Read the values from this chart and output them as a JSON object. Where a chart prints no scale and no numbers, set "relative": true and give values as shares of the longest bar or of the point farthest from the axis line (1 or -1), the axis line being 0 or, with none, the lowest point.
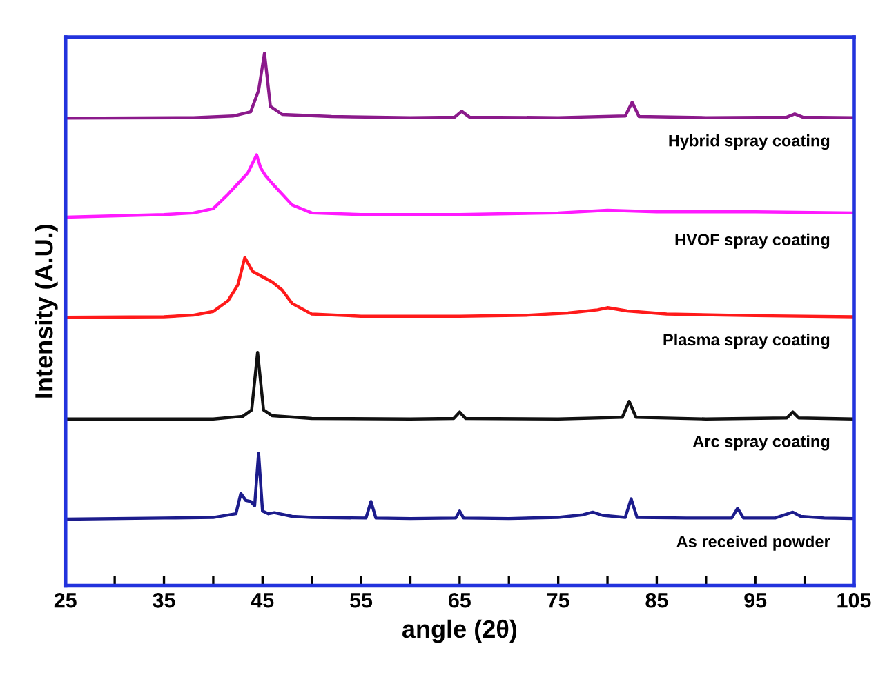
{
  "chart_data": {
    "type": "line",
    "relative": true,
    "xlabel": "angle (2θ)",
    "ylabel": "Intensity (A.U.)",
    "xlim": [
      25,
      105
    ],
    "xticks": [
      25,
      {
        "value": 30,
        "label": null
      },
      35,
      {
        "value": 40,
        "label": null
      },
      45,
      {
        "value": 50,
        "label": null
      },
      55,
      {
        "value": 60,
        "label": null
      },
      65,
      {
        "value": 70,
        "label": null
      },
      75,
      {
        "value": 80,
        "label": null
      },
      85,
      {
        "value": 90,
        "label": null
      },
      95,
      {
        "value": 100,
        "label": null
      },
      105
    ],
    "grid": false,
    "legend": false,
    "marker": "none",
    "line_style": "solid",
    "series": [
      {
        "name": "As received powder",
        "color": "#1c1c8c",
        "x": [
          25,
          35,
          40,
          42.3,
          42.8,
          43.3,
          43.8,
          44.2,
          44.6,
          45.0,
          45.6,
          46.2,
          48,
          50,
          55.5,
          56.0,
          56.5,
          60,
          64.6,
          65.0,
          65.4,
          70,
          75,
          77.5,
          78.5,
          79.5,
          81.8,
          82.4,
          83.0,
          88,
          92.6,
          93.2,
          93.8,
          97,
          98.8,
          99.6,
          102,
          105
        ],
        "values": [
          0.125,
          0.127,
          0.128,
          0.135,
          0.173,
          0.16,
          0.158,
          0.15,
          0.249,
          0.14,
          0.135,
          0.137,
          0.13,
          0.128,
          0.127,
          0.158,
          0.127,
          0.126,
          0.127,
          0.14,
          0.127,
          0.126,
          0.128,
          0.133,
          0.138,
          0.132,
          0.128,
          0.163,
          0.128,
          0.127,
          0.127,
          0.145,
          0.127,
          0.127,
          0.138,
          0.13,
          0.127,
          0.126
        ]
      },
      {
        "name": "Arc spray coating",
        "color": "#111111",
        "x": [
          25,
          40,
          43,
          43.9,
          44.5,
          45.1,
          46,
          50,
          60,
          64.4,
          65.0,
          65.6,
          75,
          81.5,
          82.2,
          82.9,
          90,
          98.2,
          98.8,
          99.4,
          105
        ],
        "values": [
          0.313,
          0.313,
          0.318,
          0.33,
          0.438,
          0.33,
          0.319,
          0.314,
          0.313,
          0.314,
          0.326,
          0.314,
          0.313,
          0.316,
          0.346,
          0.316,
          0.313,
          0.315,
          0.326,
          0.315,
          0.313
        ]
      },
      {
        "name": "Plasma spray coating",
        "color": "#ff1a1a",
        "x": [
          25,
          35,
          38,
          40,
          41.5,
          42.5,
          43.2,
          44,
          45,
          46,
          47,
          48,
          50,
          55,
          65,
          72,
          76,
          79,
          80,
          82,
          86,
          95,
          105
        ],
        "values": [
          0.504,
          0.505,
          0.508,
          0.515,
          0.535,
          0.565,
          0.616,
          0.59,
          0.58,
          0.57,
          0.555,
          0.53,
          0.51,
          0.506,
          0.506,
          0.508,
          0.512,
          0.518,
          0.522,
          0.516,
          0.51,
          0.507,
          0.505
        ]
      },
      {
        "name": "HVOF spray coating",
        "color": "#ff1aff",
        "x": [
          25,
          35,
          38,
          40,
          41.5,
          42.5,
          43.5,
          44.4,
          44.8,
          45.3,
          46,
          47,
          48,
          50,
          55,
          65,
          75,
          80,
          85,
          95,
          105
        ],
        "values": [
          0.692,
          0.697,
          0.7,
          0.708,
          0.735,
          0.755,
          0.775,
          0.809,
          0.785,
          0.77,
          0.755,
          0.735,
          0.715,
          0.7,
          0.697,
          0.697,
          0.7,
          0.705,
          0.702,
          0.702,
          0.7
        ]
      },
      {
        "name": "Hybrid spray coating",
        "color": "#8b1a8b",
        "x": [
          25,
          38,
          42,
          43.8,
          44.6,
          45.2,
          45.8,
          47,
          52,
          60,
          64.5,
          65.2,
          66,
          75,
          81.8,
          82.5,
          83.2,
          90,
          98.2,
          99,
          99.8,
          105
        ],
        "values": [
          0.878,
          0.879,
          0.882,
          0.89,
          0.93,
          1.0,
          0.9,
          0.885,
          0.881,
          0.879,
          0.88,
          0.891,
          0.88,
          0.879,
          0.882,
          0.908,
          0.881,
          0.879,
          0.88,
          0.886,
          0.88,
          0.879
        ]
      }
    ]
  }
}
